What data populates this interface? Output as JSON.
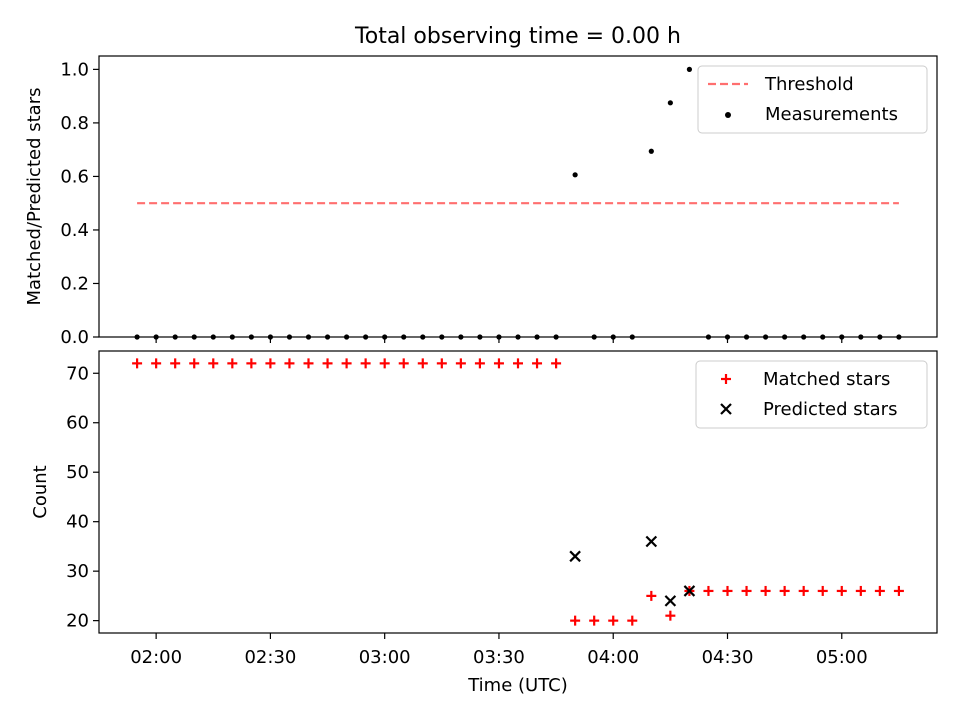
{
  "chart_data": {
    "title": "Total observing time = 0.00 h",
    "xlabel": "Time (UTC)",
    "x_ticks": [
      "02:00",
      "02:30",
      "03:00",
      "03:30",
      "04:00",
      "04:30",
      "05:00"
    ],
    "panels": [
      {
        "type": "scatter",
        "ylabel": "Matched/Predicted stars",
        "ylim": [
          0.0,
          1.05
        ],
        "y_ticks": [
          "0.0",
          "0.2",
          "0.4",
          "0.6",
          "0.8",
          "1.0"
        ],
        "legend_position": "top-right",
        "threshold": {
          "name": "Threshold",
          "value": 0.5,
          "x_start": "01:55",
          "x_end": "05:15",
          "color": "#ff6f6f"
        },
        "series": [
          {
            "name": "Measurements",
            "color": "#000000",
            "marker": "dot",
            "points": [
              [
                "01:55",
                0
              ],
              [
                "02:00",
                0
              ],
              [
                "02:05",
                0
              ],
              [
                "02:10",
                0
              ],
              [
                "02:15",
                0
              ],
              [
                "02:20",
                0
              ],
              [
                "02:25",
                0
              ],
              [
                "02:30",
                0
              ],
              [
                "02:35",
                0
              ],
              [
                "02:40",
                0
              ],
              [
                "02:45",
                0
              ],
              [
                "02:50",
                0
              ],
              [
                "02:55",
                0
              ],
              [
                "03:00",
                0
              ],
              [
                "03:05",
                0
              ],
              [
                "03:10",
                0
              ],
              [
                "03:15",
                0
              ],
              [
                "03:20",
                0
              ],
              [
                "03:25",
                0
              ],
              [
                "03:30",
                0
              ],
              [
                "03:35",
                0
              ],
              [
                "03:40",
                0
              ],
              [
                "03:45",
                0
              ],
              [
                "03:50",
                0.606
              ],
              [
                "03:55",
                0
              ],
              [
                "04:00",
                0
              ],
              [
                "04:05",
                0
              ],
              [
                "04:10",
                0.694
              ],
              [
                "04:15",
                0.875
              ],
              [
                "04:20",
                1.0
              ],
              [
                "04:25",
                0
              ],
              [
                "04:30",
                0
              ],
              [
                "04:35",
                0
              ],
              [
                "04:40",
                0
              ],
              [
                "04:45",
                0
              ],
              [
                "04:50",
                0
              ],
              [
                "04:55",
                0
              ],
              [
                "05:00",
                0
              ],
              [
                "05:05",
                0
              ],
              [
                "05:10",
                0
              ],
              [
                "05:15",
                0
              ]
            ]
          }
        ]
      },
      {
        "type": "scatter",
        "ylabel": "Count",
        "ylim": [
          17.5,
          74.5
        ],
        "y_ticks": [
          "20",
          "30",
          "40",
          "50",
          "60",
          "70"
        ],
        "legend_position": "top-right",
        "series": [
          {
            "name": "Matched stars",
            "color": "#ff0000",
            "marker": "plus",
            "points": [
              [
                "01:55",
                72
              ],
              [
                "02:00",
                72
              ],
              [
                "02:05",
                72
              ],
              [
                "02:10",
                72
              ],
              [
                "02:15",
                72
              ],
              [
                "02:20",
                72
              ],
              [
                "02:25",
                72
              ],
              [
                "02:30",
                72
              ],
              [
                "02:35",
                72
              ],
              [
                "02:40",
                72
              ],
              [
                "02:45",
                72
              ],
              [
                "02:50",
                72
              ],
              [
                "02:55",
                72
              ],
              [
                "03:00",
                72
              ],
              [
                "03:05",
                72
              ],
              [
                "03:10",
                72
              ],
              [
                "03:15",
                72
              ],
              [
                "03:20",
                72
              ],
              [
                "03:25",
                72
              ],
              [
                "03:30",
                72
              ],
              [
                "03:35",
                72
              ],
              [
                "03:40",
                72
              ],
              [
                "03:45",
                72
              ],
              [
                "03:50",
                20
              ],
              [
                "03:55",
                20
              ],
              [
                "04:00",
                20
              ],
              [
                "04:05",
                20
              ],
              [
                "04:10",
                25
              ],
              [
                "04:15",
                21
              ],
              [
                "04:20",
                26
              ],
              [
                "04:25",
                26
              ],
              [
                "04:30",
                26
              ],
              [
                "04:35",
                26
              ],
              [
                "04:40",
                26
              ],
              [
                "04:45",
                26
              ],
              [
                "04:50",
                26
              ],
              [
                "04:55",
                26
              ],
              [
                "05:00",
                26
              ],
              [
                "05:05",
                26
              ],
              [
                "05:10",
                26
              ],
              [
                "05:15",
                26
              ]
            ]
          },
          {
            "name": "Predicted stars",
            "color": "#000000",
            "marker": "x",
            "points": [
              [
                "03:50",
                33
              ],
              [
                "04:10",
                36
              ],
              [
                "04:15",
                24
              ],
              [
                "04:20",
                26
              ]
            ]
          }
        ]
      }
    ]
  }
}
